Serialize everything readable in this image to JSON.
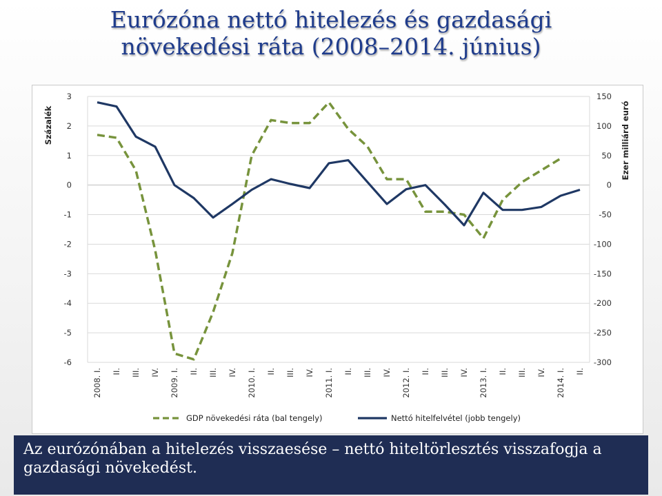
{
  "slide": {
    "title_line1": "Eurózóna nettó hitelezés és gazdasági",
    "title_line2": "növekedési ráta (2008–2014. június)",
    "caption": "Az eurózónában a hitelezés visszaesése – nettó hiteltörlesztés visszafogja a gazdasági növekedést."
  },
  "chart_data": {
    "type": "line",
    "title": "",
    "ylabel": "Százalék",
    "y2label": "Ezer milliárd euró",
    "ylim": [
      -6,
      3
    ],
    "y2lim": [
      -300,
      150
    ],
    "yticks": [
      "3",
      "2",
      "1",
      "0",
      "-1",
      "-2",
      "-3",
      "-4",
      "-5",
      "-6"
    ],
    "y2ticks": [
      "150",
      "100",
      "50",
      "0",
      "-50",
      "-100",
      "-150",
      "-200",
      "-250",
      "-300"
    ],
    "categories": [
      "2008. I.",
      "II.",
      "III.",
      "IV.",
      "2009. I.",
      "II.",
      "III.",
      "IV.",
      "2010. I.",
      "II.",
      "III.",
      "IV.",
      "2011. I.",
      "II.",
      "III.",
      "IV.",
      "2012. I.",
      "II.",
      "III.",
      "IV.",
      "2013. I.",
      "II.",
      "III.",
      "IV.",
      "2014. I.",
      "II."
    ],
    "grid": true,
    "legend_position": "bottom",
    "series": [
      {
        "name": "GDP növekedési ráta (bal tengely)",
        "axis": "left",
        "style": "dashed",
        "color": "#77933c",
        "values": [
          1.7,
          1.6,
          0.5,
          -2.2,
          -5.7,
          -5.9,
          -4.3,
          -2.3,
          1.0,
          2.2,
          2.1,
          2.1,
          2.8,
          1.9,
          1.3,
          0.2,
          0.2,
          -0.9,
          -0.9,
          -1.0,
          -1.8,
          -0.5,
          0.1,
          0.5,
          0.9,
          null
        ]
      },
      {
        "name": "Nettó hitelfelvétel (jobb tengely)",
        "axis": "right",
        "style": "solid",
        "color": "#1f3864",
        "values": [
          140,
          133,
          82,
          65,
          0,
          -22,
          -55,
          -32,
          -8,
          10,
          2,
          -5,
          37,
          42,
          5,
          -32,
          -7,
          0,
          -33,
          -68,
          -13,
          -42,
          -42,
          -37,
          -18,
          -8
        ]
      }
    ]
  }
}
